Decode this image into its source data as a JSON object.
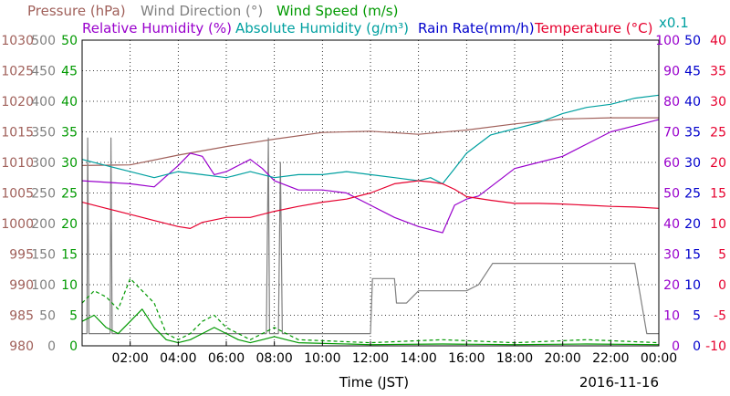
{
  "chart_data": {
    "type": "line",
    "date": "2016-11-16",
    "xlabel": "Time (JST)",
    "x_ticks": [
      "02:00",
      "04:00",
      "06:00",
      "08:00",
      "10:00",
      "12:00",
      "14:00",
      "16:00",
      "18:00",
      "20:00",
      "22:00",
      "00:00"
    ],
    "xlim": [
      "00:00",
      "24:00"
    ],
    "grid": true,
    "legend": [
      {
        "text": "Pressure (hPa)",
        "color": "#a0605a"
      },
      {
        "text": "Wind Direction (°)",
        "color": "#808080"
      },
      {
        "text": "Wind Speed (m/s)",
        "color": "#009900"
      },
      {
        "text": "Relative Humidity (%)",
        "color": "#9900cc"
      },
      {
        "text": "Absolute Humidity (g/m³)",
        "color": "#00a0a0"
      },
      {
        "text": "Rain Rate(mm/h)",
        "color": "#0000cc"
      },
      {
        "text": "Temperature (°C)",
        "color": "#e6002e"
      },
      {
        "text": "x0.1",
        "color": "#00a0a0"
      }
    ],
    "axes": [
      {
        "name": "Pressure (hPa)",
        "side": "left",
        "color": "#a0605a",
        "range": [
          980,
          1030
        ],
        "ticks": [
          "1030",
          "1025",
          "1020",
          "1015",
          "1010",
          "1005",
          "1000",
          "995",
          "990",
          "985",
          "980"
        ]
      },
      {
        "name": "Wind Direction (°)",
        "side": "left",
        "color": "#808080",
        "range": [
          0,
          500
        ],
        "ticks": [
          "500",
          "450",
          "400",
          "350",
          "300",
          "250",
          "200",
          "150",
          "100",
          "50",
          "0"
        ]
      },
      {
        "name": "Wind Speed (m/s)",
        "side": "left",
        "color": "#009900",
        "range": [
          0,
          50
        ],
        "ticks": [
          "50",
          "45",
          "40",
          "35",
          "30",
          "25",
          "20",
          "15",
          "10",
          "5",
          "0"
        ]
      },
      {
        "name": "Relative Humidity (%)",
        "side": "right",
        "color": "#9900cc",
        "range": [
          0,
          100
        ],
        "ticks": [
          "100",
          "90",
          "80",
          "70",
          "60",
          "50",
          "40",
          "30",
          "20",
          "10",
          "0"
        ]
      },
      {
        "name": "Rain Rate(mm/h)",
        "side": "right",
        "color": "#0000cc",
        "range": [
          0,
          50
        ],
        "ticks": [
          "50",
          "45",
          "40",
          "35",
          "30",
          "25",
          "20",
          "15",
          "10",
          "5",
          "0"
        ]
      },
      {
        "name": "Temperature (°C)",
        "side": "right",
        "color": "#e6002e",
        "range": [
          -10,
          40
        ],
        "ticks": [
          "40",
          "35",
          "30",
          "25",
          "20",
          "15",
          "10",
          "5",
          "0",
          "-5",
          "-10"
        ]
      }
    ],
    "series": [
      {
        "name": "Pressure (hPa)",
        "axis": 0,
        "color": "#a0605a",
        "x": [
          "00:00",
          "02:00",
          "04:00",
          "06:00",
          "08:00",
          "10:00",
          "12:00",
          "14:00",
          "16:00",
          "18:00",
          "20:00",
          "22:00",
          "24:00"
        ],
        "y": [
          1009.5,
          1009.6,
          1011.2,
          1012.6,
          1013.8,
          1014.9,
          1015.1,
          1014.6,
          1015.3,
          1016.3,
          1017.1,
          1017.3,
          1017.3
        ]
      },
      {
        "name": "Wind Direction (°)",
        "axis": 1,
        "color": "#808080",
        "x": [
          "00:00",
          "00:12",
          "00:14",
          "00:17",
          "00:20",
          "00:22",
          "01:00",
          "01:10",
          "01:12",
          "01:15",
          "01:20",
          "02:00",
          "07:00",
          "07:40",
          "07:45",
          "07:48",
          "07:55",
          "08:00",
          "08:10",
          "08:15",
          "08:20",
          "08:30",
          "09:00",
          "12:00",
          "12:05",
          "12:30",
          "13:00",
          "13:05",
          "13:30",
          "14:00",
          "16:00",
          "16:30",
          "17:00",
          "17:05",
          "22:00",
          "22:30",
          "23:00",
          "23:30",
          "24:00"
        ],
        "y": [
          20,
          20,
          340,
          20,
          20,
          20,
          20,
          20,
          340,
          20,
          20,
          20,
          20,
          20,
          340,
          20,
          20,
          20,
          20,
          300,
          20,
          20,
          20,
          20,
          110,
          110,
          110,
          70,
          70,
          90,
          90,
          100,
          130,
          135,
          135,
          135,
          135,
          20,
          20
        ]
      },
      {
        "name": "Wind Speed (m/s)",
        "axis": 2,
        "color": "#009900",
        "x": [
          "00:00",
          "00:30",
          "01:00",
          "01:30",
          "02:00",
          "02:30",
          "03:00",
          "03:30",
          "04:00",
          "04:30",
          "05:00",
          "05:30",
          "06:00",
          "06:30",
          "07:00",
          "07:30",
          "08:00",
          "08:30",
          "09:00",
          "12:00",
          "15:00",
          "18:00",
          "21:00",
          "24:00"
        ],
        "y": [
          4,
          5,
          3,
          2,
          4,
          6,
          3,
          1,
          0.5,
          1,
          2,
          3,
          2,
          1,
          0.5,
          1,
          1.5,
          1,
          0.5,
          0.2,
          0.3,
          0.2,
          0.3,
          0.2
        ]
      },
      {
        "name": "Wind Speed (m/s)",
        "axis": 2,
        "color": "#009900",
        "dashed": true,
        "x": [
          "00:00",
          "00:30",
          "01:00",
          "01:30",
          "02:00",
          "02:30",
          "03:00",
          "03:30",
          "04:00",
          "04:30",
          "05:00",
          "05:30",
          "06:00",
          "06:30",
          "07:00",
          "07:30",
          "08:00",
          "08:30",
          "09:00",
          "12:00",
          "15:00",
          "18:00",
          "21:00",
          "24:00"
        ],
        "y": [
          7,
          9,
          8,
          6,
          11,
          9,
          7,
          2,
          1,
          2,
          4,
          5,
          3,
          2,
          1,
          2,
          3,
          2,
          1,
          0.5,
          1,
          0.5,
          1,
          0.5
        ]
      },
      {
        "name": "Relative Humidity (%)",
        "axis": 3,
        "color": "#9900cc",
        "x": [
          "00:00",
          "02:00",
          "03:00",
          "04:00",
          "04:30",
          "05:00",
          "05:30",
          "06:00",
          "06:30",
          "07:00",
          "07:30",
          "08:00",
          "09:00",
          "10:00",
          "11:00",
          "12:00",
          "13:00",
          "14:00",
          "15:00",
          "15:30",
          "16:00",
          "16:30",
          "17:00",
          "18:00",
          "19:00",
          "20:00",
          "21:00",
          "22:00",
          "23:00",
          "24:00"
        ],
        "y": [
          54,
          53,
          52,
          59,
          63,
          62,
          56,
          57,
          59,
          61,
          58,
          54,
          51,
          51,
          50,
          46,
          42,
          39,
          37,
          46,
          48,
          49,
          52,
          58,
          60,
          62,
          66,
          70,
          72,
          74
        ]
      },
      {
        "name": "Absolute Humidity (g/m³)",
        "axis": 3,
        "color": "#00a0a0",
        "x": [
          "00:00",
          "01:00",
          "02:00",
          "03:00",
          "04:00",
          "05:00",
          "06:00",
          "07:00",
          "08:00",
          "09:00",
          "10:00",
          "11:00",
          "12:00",
          "13:00",
          "14:00",
          "14:30",
          "15:00",
          "15:30",
          "16:00",
          "16:30",
          "17:00",
          "17:30",
          "18:00",
          "19:00",
          "20:00",
          "21:00",
          "22:00",
          "23:00",
          "24:00"
        ],
        "y": [
          61,
          59,
          57,
          55,
          57,
          56,
          55,
          57,
          55,
          56,
          56,
          57,
          56,
          55,
          54,
          55,
          53,
          58,
          63,
          66,
          69,
          70,
          71,
          73,
          76,
          78,
          79,
          81,
          82
        ]
      },
      {
        "name": "Temperature (°C)",
        "axis": 5,
        "color": "#e6002e",
        "x": [
          "00:00",
          "01:00",
          "02:00",
          "03:00",
          "04:00",
          "04:30",
          "05:00",
          "06:00",
          "07:00",
          "08:00",
          "09:00",
          "10:00",
          "11:00",
          "12:00",
          "13:00",
          "14:00",
          "14:30",
          "15:00",
          "15:30",
          "16:00",
          "17:00",
          "18:00",
          "19:00",
          "20:00",
          "21:00",
          "22:00",
          "23:00",
          "24:00"
        ],
        "y": [
          13.5,
          12.5,
          11.5,
          10.5,
          9.5,
          9.2,
          10.2,
          11,
          11,
          12,
          12.8,
          13.5,
          14,
          15,
          16.5,
          17,
          16.8,
          16.5,
          15.6,
          14.4,
          13.8,
          13.3,
          13.3,
          13.2,
          13,
          12.8,
          12.7,
          12.5
        ]
      }
    ]
  }
}
